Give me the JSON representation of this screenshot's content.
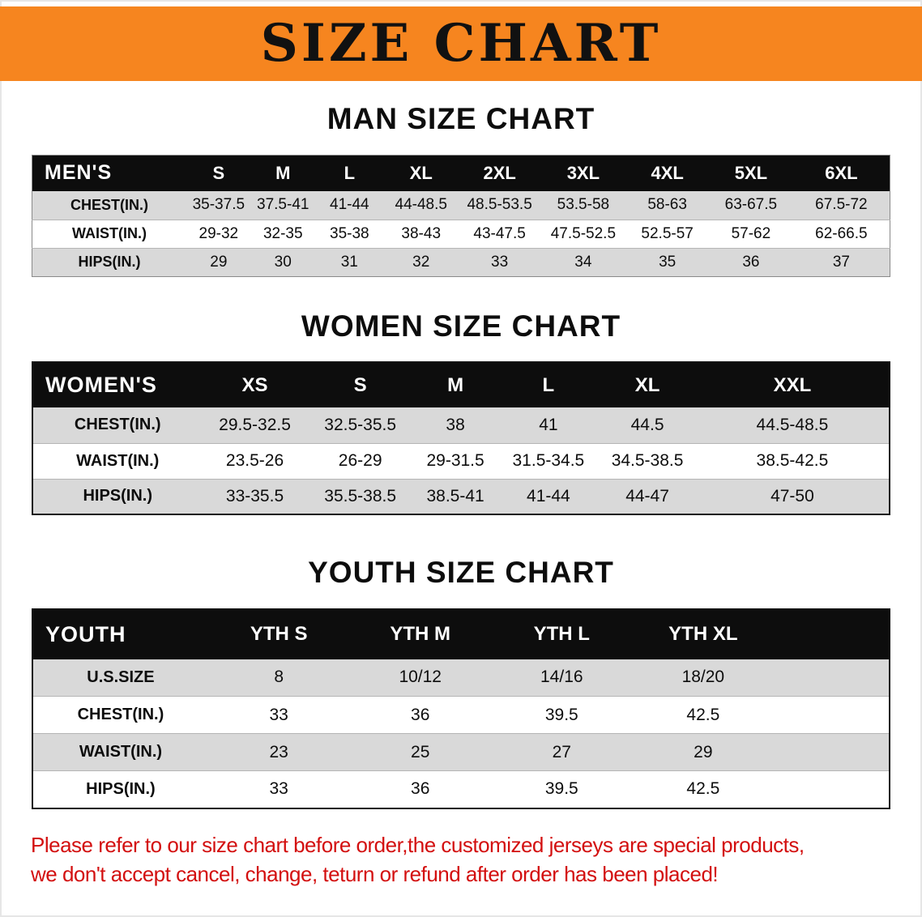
{
  "page": {
    "banner_title": "SIZE CHART",
    "colors": {
      "banner_bg": "#f6851f",
      "header_bg": "#0d0d0d",
      "stripe": "#d9d9d9",
      "disclaimer_red": "#d30f0f"
    }
  },
  "sections": [
    {
      "heading": "MAN SIZE CHART",
      "table": {
        "header": [
          "MEN'S",
          "S",
          "M",
          "L",
          "XL",
          "2XL",
          "3XL",
          "4XL",
          "5XL",
          "6XL"
        ],
        "rows": [
          [
            "CHEST(IN.)",
            "35-37.5",
            "37.5-41",
            "41-44",
            "44-48.5",
            "48.5-53.5",
            "53.5-58",
            "58-63",
            "63-67.5",
            "67.5-72"
          ],
          [
            "WAIST(IN.)",
            "29-32",
            "32-35",
            "35-38",
            "38-43",
            "43-47.5",
            "47.5-52.5",
            "52.5-57",
            "57-62",
            "62-66.5"
          ],
          [
            "HIPS(IN.)",
            "29",
            "30",
            "31",
            "32",
            "33",
            "34",
            "35",
            "36",
            "37"
          ]
        ]
      }
    },
    {
      "heading": "WOMEN SIZE CHART",
      "table": {
        "header": [
          "WOMEN'S",
          "XS",
          "S",
          "M",
          "L",
          "XL",
          "XXL"
        ],
        "rows": [
          [
            "CHEST(IN.)",
            "29.5-32.5",
            "32.5-35.5",
            "38",
            "41",
            "44.5",
            "44.5-48.5"
          ],
          [
            "WAIST(IN.)",
            "23.5-26",
            "26-29",
            "29-31.5",
            "31.5-34.5",
            "34.5-38.5",
            "38.5-42.5"
          ],
          [
            "HIPS(IN.)",
            "33-35.5",
            "35.5-38.5",
            "38.5-41",
            "41-44",
            "44-47",
            "47-50"
          ]
        ]
      }
    },
    {
      "heading": "YOUTH SIZE CHART",
      "table": {
        "header": [
          "YOUTH",
          "YTH S",
          "YTH M",
          "YTH L",
          "YTH XL"
        ],
        "rows": [
          [
            "U.S.SIZE",
            "8",
            "10/12",
            "14/16",
            "18/20"
          ],
          [
            "CHEST(IN.)",
            "33",
            "36",
            "39.5",
            "42.5"
          ],
          [
            "WAIST(IN.)",
            "23",
            "25",
            "27",
            "29"
          ],
          [
            "HIPS(IN.)",
            "33",
            "36",
            "39.5",
            "42.5"
          ]
        ]
      }
    }
  ],
  "disclaimer": {
    "line1": "Please refer to our size chart before order,the customized jerseys are special products,",
    "line2": "we don't accept cancel, change, teturn or refund after order has been placed!"
  }
}
